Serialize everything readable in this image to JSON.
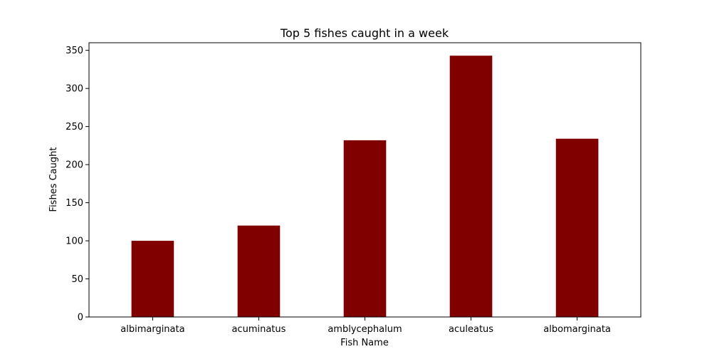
{
  "chart_data": {
    "type": "bar",
    "title": "Top 5 fishes caught in a week",
    "xlabel": "Fish Name",
    "ylabel": "Fishes Caught",
    "categories": [
      "albimarginata",
      "acuminatus",
      "amblycephalum",
      "aculeatus",
      "albomarginata"
    ],
    "values": [
      100,
      120,
      232,
      343,
      234
    ],
    "ylim": [
      0,
      360
    ],
    "yticks": [
      0,
      50,
      100,
      150,
      200,
      250,
      300,
      350
    ],
    "grid": false,
    "bar_color": "#800000"
  }
}
